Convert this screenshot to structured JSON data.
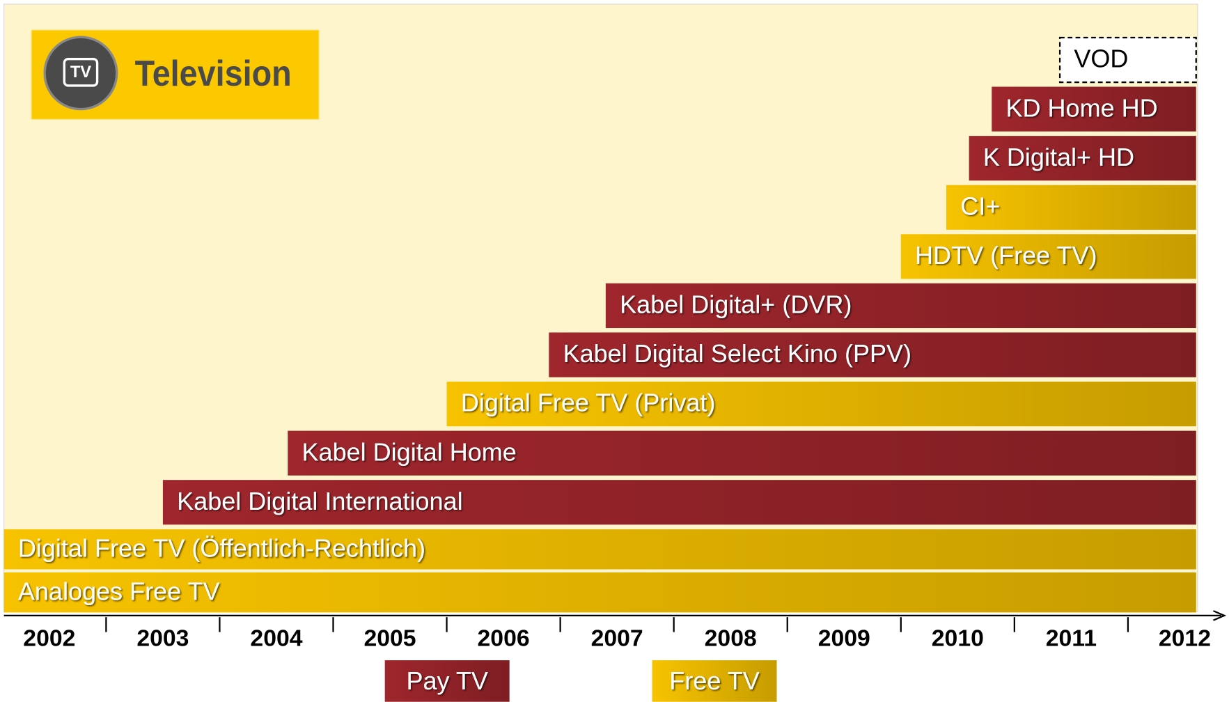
{
  "chart_data": {
    "type": "timeline",
    "logo": {
      "icon": "TV",
      "title": "Television"
    },
    "xticks": [
      2002,
      2003,
      2004,
      2005,
      2006,
      2007,
      2008,
      2009,
      2010,
      2011,
      2012
    ],
    "xlim": [
      2001.6,
      2012.3
    ],
    "bars": [
      {
        "label": "Analoges Free TV",
        "start": 2001.6,
        "end": 2012.1,
        "color": "#f7c300"
      },
      {
        "label": "Digital Free TV (Öffentlich-Rechtlich)",
        "start": 2001.6,
        "end": 2012.1,
        "color": "#f7c300"
      },
      {
        "label": "Kabel Digital International",
        "start": 2003.0,
        "end": 2012.1,
        "color": "#9e262c"
      },
      {
        "label": "Kabel Digital Home",
        "start": 2004.1,
        "end": 2012.1,
        "color": "#9e262c"
      },
      {
        "label": "Digital Free TV (Privat)",
        "start": 2005.5,
        "end": 2012.1,
        "color": "#f7c300"
      },
      {
        "label": "Kabel Digital Select Kino (PPV)",
        "start": 2006.4,
        "end": 2012.1,
        "color": "#9e262c"
      },
      {
        "label": "Kabel Digital+ (DVR)",
        "start": 2006.9,
        "end": 2012.1,
        "color": "#9e262c"
      },
      {
        "label": "HDTV (Free TV)",
        "start": 2009.5,
        "end": 2012.1,
        "color": "#f7c300"
      },
      {
        "label": "CI+",
        "start": 2009.9,
        "end": 2012.1,
        "color": "#f7c300"
      },
      {
        "label": "K Digital+ HD",
        "start": 2010.1,
        "end": 2012.1,
        "color": "#9e262c"
      },
      {
        "label": "KD Home HD",
        "start": 2010.3,
        "end": 2012.1,
        "color": "#9e262c"
      },
      {
        "label": "VOD",
        "start": 2010.9,
        "end": 2012.1,
        "color": "#ffffff",
        "dashed": true
      }
    ],
    "legend": [
      {
        "name": "Pay TV",
        "color": "#9e262c"
      },
      {
        "name": "Free TV",
        "color": "#f7c300"
      }
    ]
  }
}
